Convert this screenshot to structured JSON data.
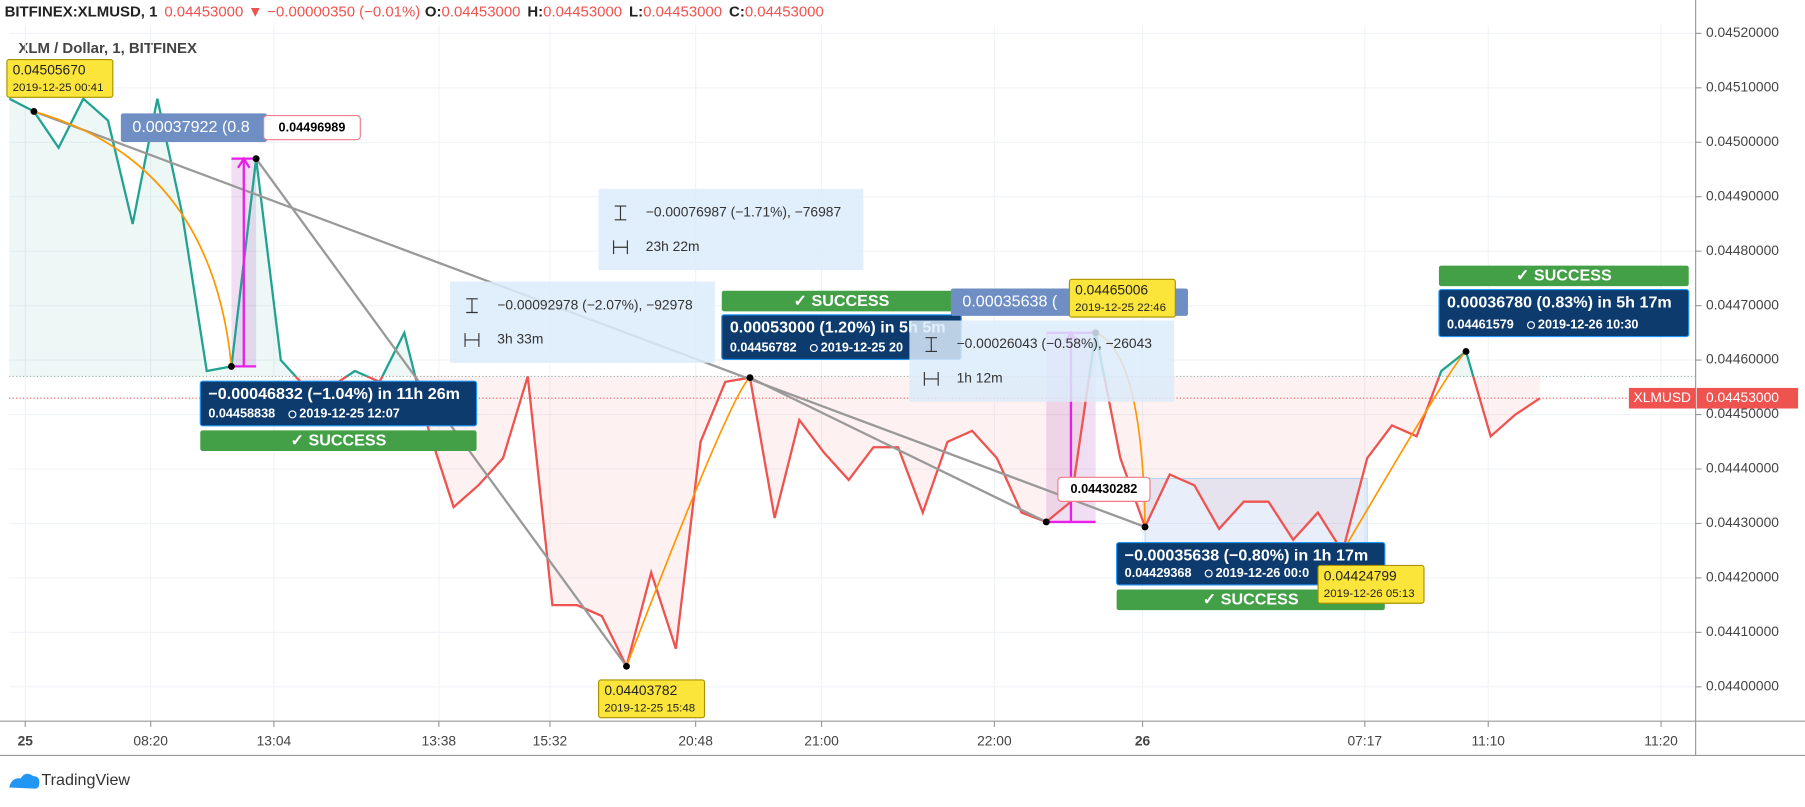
{
  "header": {
    "symbol": "BITFINEX:XLMUSD, 1",
    "last": "0.04453000",
    "arrow": "▼",
    "change": "−0.00000350 (−0.01%)",
    "ohlc": [
      {
        "label": "O:",
        "value": "0.04453000"
      },
      {
        "label": "H:",
        "value": "0.04453000"
      },
      {
        "label": "L:",
        "value": "0.04453000"
      },
      {
        "label": "C:",
        "value": "0.04453000"
      }
    ]
  },
  "chart_data": {
    "type": "baseline",
    "title": "XLM / Dollar, 1, BITFINEX",
    "x": [
      0,
      1,
      2,
      3,
      4,
      5,
      6,
      7,
      8,
      9,
      10,
      11,
      12,
      13,
      14,
      15,
      16,
      17,
      18,
      19,
      20,
      21,
      22,
      23,
      24,
      25,
      26,
      27,
      28,
      29,
      30,
      31,
      32,
      33,
      34,
      35,
      36,
      37,
      38,
      39,
      40,
      41,
      42,
      43,
      44,
      45,
      46,
      47,
      48,
      49,
      50,
      51,
      52,
      53,
      54,
      55,
      56,
      57,
      58,
      59,
      60,
      61,
      62
    ],
    "series": [
      {
        "name": "XLMUSD",
        "color_above": "#22a391",
        "color_below": "#ef5350",
        "values": [
          0.04508,
          0.0450567,
          0.04499,
          0.04508,
          0.04504,
          0.04485,
          0.04508,
          0.04487,
          0.04458,
          0.0445884,
          0.0449699,
          0.0446,
          0.04455,
          0.04455,
          0.04458,
          0.04456,
          0.04465,
          0.04447,
          0.04433,
          0.04437,
          0.04442,
          0.04457,
          0.04415,
          0.04415,
          0.04413,
          0.0440378,
          0.04421,
          0.04407,
          0.04445,
          0.04456,
          0.0445678,
          0.04431,
          0.04449,
          0.04443,
          0.04438,
          0.04444,
          0.04444,
          0.04432,
          0.04445,
          0.04447,
          0.04442,
          0.04432,
          0.0443028,
          0.04434,
          0.0446501,
          0.04442,
          0.0442937,
          0.04439,
          0.04437,
          0.04429,
          0.04434,
          0.04434,
          0.04427,
          0.04432,
          0.044248,
          0.04442,
          0.04448,
          0.04446,
          0.04458,
          0.0446158,
          0.04446,
          0.0445,
          0.04453
        ]
      }
    ],
    "baseline": 0.04457,
    "xlim": [
      0,
      68.3
    ],
    "xticks": [
      {
        "value": 0.65,
        "label": "25"
      },
      {
        "value": 5.73,
        "label": "08:20"
      },
      {
        "value": 10.72,
        "label": "13:04"
      },
      {
        "value": 17.4,
        "label": "13:38"
      },
      {
        "value": 21.9,
        "label": "15:32"
      },
      {
        "value": 27.8,
        "label": "20:48"
      },
      {
        "value": 32.9,
        "label": "21:00"
      },
      {
        "value": 39.9,
        "label": "22:00"
      },
      {
        "value": 45.9,
        "label": "26"
      },
      {
        "value": 54.9,
        "label": "07:17"
      },
      {
        "value": 59.9,
        "label": "11:10"
      },
      {
        "value": 66.9,
        "label": "11:20"
      }
    ],
    "ylim": [
      0.043937,
      0.045215
    ],
    "yticks": [
      {
        "value": 0.044,
        "label": "0.04400000"
      },
      {
        "value": 0.0441,
        "label": "0.04410000"
      },
      {
        "value": 0.0442,
        "label": "0.04420000"
      },
      {
        "value": 0.0443,
        "label": "0.04430000"
      },
      {
        "value": 0.0444,
        "label": "0.04440000"
      },
      {
        "value": 0.0445,
        "label": "0.04450000"
      },
      {
        "value": 0.0446,
        "label": "0.04460000"
      },
      {
        "value": 0.0447,
        "label": "0.04470000"
      },
      {
        "value": 0.0448,
        "label": "0.04480000"
      },
      {
        "value": 0.0449,
        "label": "0.04490000"
      },
      {
        "value": 0.045,
        "label": "0.04500000"
      },
      {
        "value": 0.0451,
        "label": "0.04510000"
      },
      {
        "value": 0.0452,
        "label": "0.04520000"
      }
    ],
    "grid": true,
    "price_tag": {
      "name": "XLMUSD",
      "value": "0.04453000"
    },
    "callouts": [
      {
        "price": "0.04505670",
        "time": "2019-12-25 00:41"
      },
      {
        "price": "0.04403782",
        "time": "2019-12-25 15:48"
      },
      {
        "price": "0.04465006",
        "time": "2019-12-25 22:46"
      },
      {
        "price": "0.04424799",
        "time": "2019-12-26 05:13"
      }
    ],
    "price_notes": [
      "0.04496989",
      "0.04430282"
    ],
    "measures": [
      {
        "text": "−0.00046832 (−1.04%) in 11h 26m",
        "price": "0.04458838",
        "time": "2019-12-25  12:07",
        "status": "✓ SUCCESS"
      },
      {
        "text": "0.00053000 (1.20%) in 5h 5m",
        "price": "0.04456782",
        "time": "2019-12-25  20",
        "status": "✓ SUCCESS"
      },
      {
        "text": "−0.00035638 (−0.80%) in 1h 17m",
        "price": "0.04429368",
        "time": "2019-12-26  00:0",
        "status": "✓ SUCCESS"
      },
      {
        "text": "0.00036780 (0.83%) in 5h 17m",
        "price": "0.04461579",
        "time": "2019-12-26  10:30",
        "status": "✓ SUCCESS"
      }
    ],
    "partial_labels": [
      "0.00037922 (0.8",
      "0.00035638 ("
    ],
    "ranges": [
      {
        "change": "−0.00076987 (−1.71%), −76987",
        "duration": "23h 22m"
      },
      {
        "change": "−0.00092978 (−2.07%), −92978",
        "duration": "3h 33m"
      },
      {
        "change": "−0.00026043 (−0.58%), −26043",
        "duration": "1h 12m"
      }
    ]
  },
  "footer": {
    "brand": "TradingView"
  }
}
